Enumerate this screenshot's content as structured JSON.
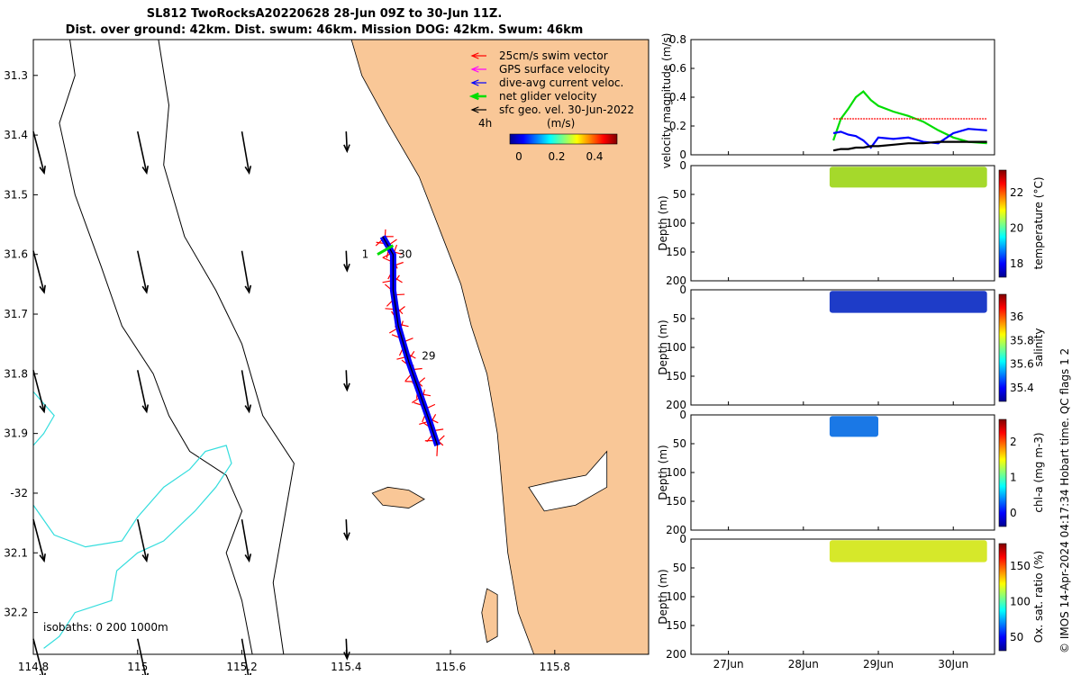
{
  "title_line1": "SL812 TwoRocksA20220628 28-Jun 09Z to 30-Jun 11Z.",
  "title_line2": "Dist. over ground: 42km. Dist. swum: 46km. Mission DOG: 42km. Swum: 46km",
  "footer_note": "© IMOS 14-Apr-2024 04:17:34 Hobart time. QC flags 1  2",
  "colors": {
    "land": "#f9c797",
    "isobath_shallow": "#000000",
    "isobath_deep": "#33dddd",
    "swim": "#ff0000",
    "gps": "#ff00ff",
    "current": "#0000ff",
    "net": "#00dd00",
    "geo": "#000000"
  },
  "chart_data": [
    {
      "type": "scatter",
      "name": "map",
      "xlim": [
        114.8,
        115.98
      ],
      "ylim": [
        -32.27,
        -31.24
      ],
      "xticks": [
        114.8,
        115,
        115.2,
        115.4,
        115.6,
        115.8
      ],
      "xtick_labels": [
        "114.8",
        "115",
        "115.2",
        "115.4",
        "115.6",
        "115.8"
      ],
      "yticks": [
        31.3,
        31.4,
        31.5,
        31.6,
        31.7,
        31.8,
        31.9,
        32,
        32.1,
        32.2
      ],
      "ytick_labels": [
        "31.3",
        "31.4",
        "31.5",
        "31.6",
        "31.7",
        "31.8",
        "31.9",
        "-32",
        "32.1",
        "32.2"
      ],
      "legend": [
        "25cm/s swim vector",
        "GPS surface velocity",
        "dive-avg current veloc.",
        "net glider velocity",
        "sfc geo. vel. 30-Jun-2022"
      ],
      "legend_time": "4h",
      "colorbar_label": "(m/s)",
      "colorbar_ticks": [
        "0",
        "0.2",
        "0.4"
      ],
      "isobath_label": "isobaths: 0   200  1000m",
      "track_labels": [
        "1",
        "30",
        "29"
      ],
      "track": [
        {
          "lon": 115.47,
          "lat": -31.57
        },
        {
          "lon": 115.49,
          "lat": -31.6
        },
        {
          "lon": 115.49,
          "lat": -31.66
        },
        {
          "lon": 115.5,
          "lat": -31.72
        },
        {
          "lon": 115.52,
          "lat": -31.78
        },
        {
          "lon": 115.54,
          "lat": -31.83
        },
        {
          "lon": 115.56,
          "lat": -31.88
        },
        {
          "lon": 115.575,
          "lat": -31.92
        }
      ],
      "geo_vectors": {
        "lons": [
          114.8,
          115.0,
          115.2,
          115.4
        ],
        "lats": [
          31.4,
          31.6,
          31.8,
          32.05,
          32.25
        ]
      }
    },
    {
      "type": "line",
      "name": "velocity",
      "ylabel": "velocity magnitude (m/s)",
      "ylim": [
        0,
        0.8
      ],
      "yticks": [
        "0",
        "0.2",
        "0.4",
        "0.6",
        "0.8"
      ],
      "x_days": [
        28.4,
        28.5,
        28.6,
        28.7,
        28.8,
        28.9,
        29.0,
        29.2,
        29.4,
        29.6,
        29.8,
        30.0,
        30.2,
        30.45
      ],
      "series": [
        {
          "name": "net glider velocity",
          "values": [
            0.1,
            0.25,
            0.32,
            0.4,
            0.44,
            0.38,
            0.34,
            0.3,
            0.27,
            0.23,
            0.17,
            0.12,
            0.09,
            0.08
          ]
        },
        {
          "name": "swim speed",
          "values": [
            0.25,
            0.25,
            0.25,
            0.25,
            0.25,
            0.25,
            0.25,
            0.25,
            0.25,
            0.25,
            0.25,
            0.25,
            0.25,
            0.25
          ]
        },
        {
          "name": "dive-avg current",
          "values": [
            0.15,
            0.16,
            0.14,
            0.13,
            0.1,
            0.05,
            0.12,
            0.11,
            0.12,
            0.09,
            0.08,
            0.15,
            0.18,
            0.17
          ]
        },
        {
          "name": "geo velocity",
          "values": [
            0.03,
            0.04,
            0.04,
            0.05,
            0.05,
            0.06,
            0.06,
            0.07,
            0.08,
            0.08,
            0.09,
            0.09,
            0.09,
            0.09
          ]
        }
      ]
    },
    {
      "type": "heatmap",
      "name": "temperature",
      "ylabel": "Depth (m)",
      "yticks": [
        "0",
        "50",
        "100",
        "150",
        "200"
      ],
      "cbar_label": "temperature (°C)",
      "cbar_ticks": [
        "22",
        "20",
        "18"
      ],
      "x_range": [
        28.35,
        30.45
      ],
      "depth_range": [
        0,
        38
      ],
      "value": 21
    },
    {
      "type": "heatmap",
      "name": "salinity",
      "ylabel": "Depth (m)",
      "yticks": [
        "0",
        "50",
        "100",
        "150",
        "200"
      ],
      "cbar_label": "salinity",
      "cbar_ticks": [
        "36",
        "35.8",
        "35.6",
        "35.4"
      ],
      "x_range": [
        28.35,
        30.45
      ],
      "depth_range": [
        0,
        40
      ],
      "value": 35.3
    },
    {
      "type": "heatmap",
      "name": "chlorophyll",
      "ylabel": "Depth (m)",
      "yticks": [
        "0",
        "50",
        "100",
        "150",
        "200"
      ],
      "cbar_label": "chl-a (mg m-3)",
      "cbar_ticks": [
        "2",
        "1",
        "0"
      ],
      "x_range": [
        28.35,
        29.0
      ],
      "depth_range": [
        0,
        38
      ],
      "value": 0.4
    },
    {
      "type": "heatmap",
      "name": "oxygen",
      "ylabel": "Depth (m)",
      "yticks": [
        "0",
        "50",
        "100",
        "150",
        "200"
      ],
      "cbar_label": "Ox. sat. ratio (%)",
      "cbar_ticks": [
        "150",
        "100",
        "50"
      ],
      "x_range": [
        28.35,
        30.45
      ],
      "depth_range": [
        0,
        40
      ],
      "value": 125
    },
    {
      "type": "axis",
      "name": "time-axis",
      "xlim": [
        26.5,
        30.55
      ],
      "xtick_labels": [
        "27Jun",
        "28Jun",
        "29Jun",
        "30Jun"
      ],
      "xticks": [
        27,
        28,
        29,
        30
      ]
    }
  ]
}
